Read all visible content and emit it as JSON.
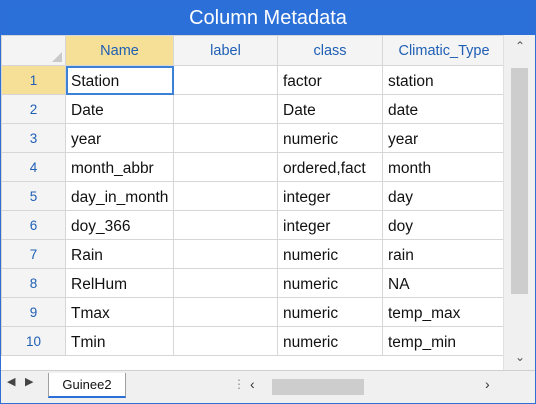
{
  "window": {
    "title": "Column Metadata"
  },
  "columns": [
    "Name",
    "label",
    "class",
    "Climatic_Type"
  ],
  "rows": [
    {
      "num": "1",
      "name": "Station",
      "label": "",
      "class": "factor",
      "climatic_type": "station"
    },
    {
      "num": "2",
      "name": "Date",
      "label": "",
      "class": "Date",
      "climatic_type": "date"
    },
    {
      "num": "3",
      "name": "year",
      "label": "",
      "class": "numeric",
      "climatic_type": "year"
    },
    {
      "num": "4",
      "name": "month_abbr",
      "label": "",
      "class": "ordered,fact",
      "climatic_type": "month"
    },
    {
      "num": "5",
      "name": "day_in_month",
      "label": "",
      "class": "integer",
      "climatic_type": "day"
    },
    {
      "num": "6",
      "name": "doy_366",
      "label": "",
      "class": "integer",
      "climatic_type": "doy"
    },
    {
      "num": "7",
      "name": "Rain",
      "label": "",
      "class": "numeric",
      "climatic_type": "rain"
    },
    {
      "num": "8",
      "name": "RelHum",
      "label": "",
      "class": "numeric",
      "climatic_type": "NA"
    },
    {
      "num": "9",
      "name": "Tmax",
      "label": "",
      "class": "numeric",
      "climatic_type": "temp_max"
    },
    {
      "num": "10",
      "name": "Tmin",
      "label": "",
      "class": "numeric",
      "climatic_type": "temp_min"
    }
  ],
  "sheet_tabs": [
    {
      "label": "Guinee2"
    }
  ],
  "icons": {
    "scroll_up": "chevron-up-icon",
    "scroll_down": "chevron-down-icon",
    "tab_prev": "triangle-left-icon",
    "tab_next": "triangle-right-icon",
    "scroll_left": "chevron-left-icon",
    "scroll_right": "chevron-right-icon"
  },
  "colors": {
    "titlebar": "#2b6fd8",
    "active_header": "#f6df96",
    "header_text": "#1f5fb4",
    "selection": "#3b82d6"
  }
}
